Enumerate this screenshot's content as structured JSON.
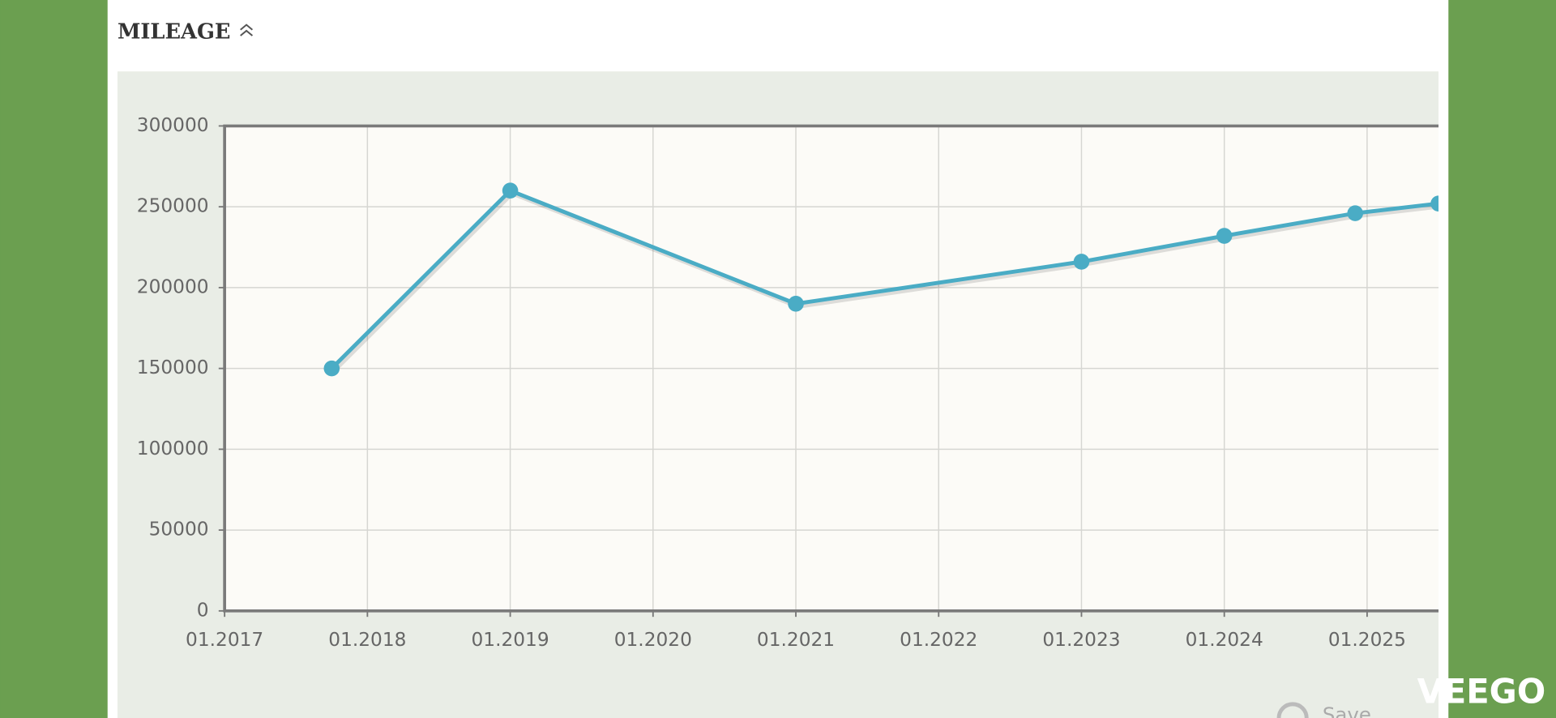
{
  "header": {
    "title": "MILEAGE"
  },
  "chart_data": {
    "type": "line",
    "x": [
      "10.2017",
      "01.2019",
      "01.2021",
      "01.2023",
      "01.2024",
      "12.2024",
      "07.2025"
    ],
    "series": [
      {
        "name": "Mileage",
        "color": "#4aacc5",
        "values": [
          150000,
          260000,
          190000,
          216000,
          232000,
          246000,
          252000
        ]
      }
    ],
    "xlim": [
      "01.2017",
      "07.2025"
    ],
    "xticks": [
      "01.2017",
      "01.2018",
      "01.2019",
      "01.2020",
      "01.2021",
      "01.2022",
      "01.2023",
      "01.2024",
      "01.2025"
    ],
    "ylim": [
      0,
      300000
    ],
    "yticks": [
      0,
      50000,
      100000,
      150000,
      200000,
      250000,
      300000
    ],
    "grid": true
  },
  "footer": {
    "button": "Save",
    "watermark": "VEEGO"
  }
}
